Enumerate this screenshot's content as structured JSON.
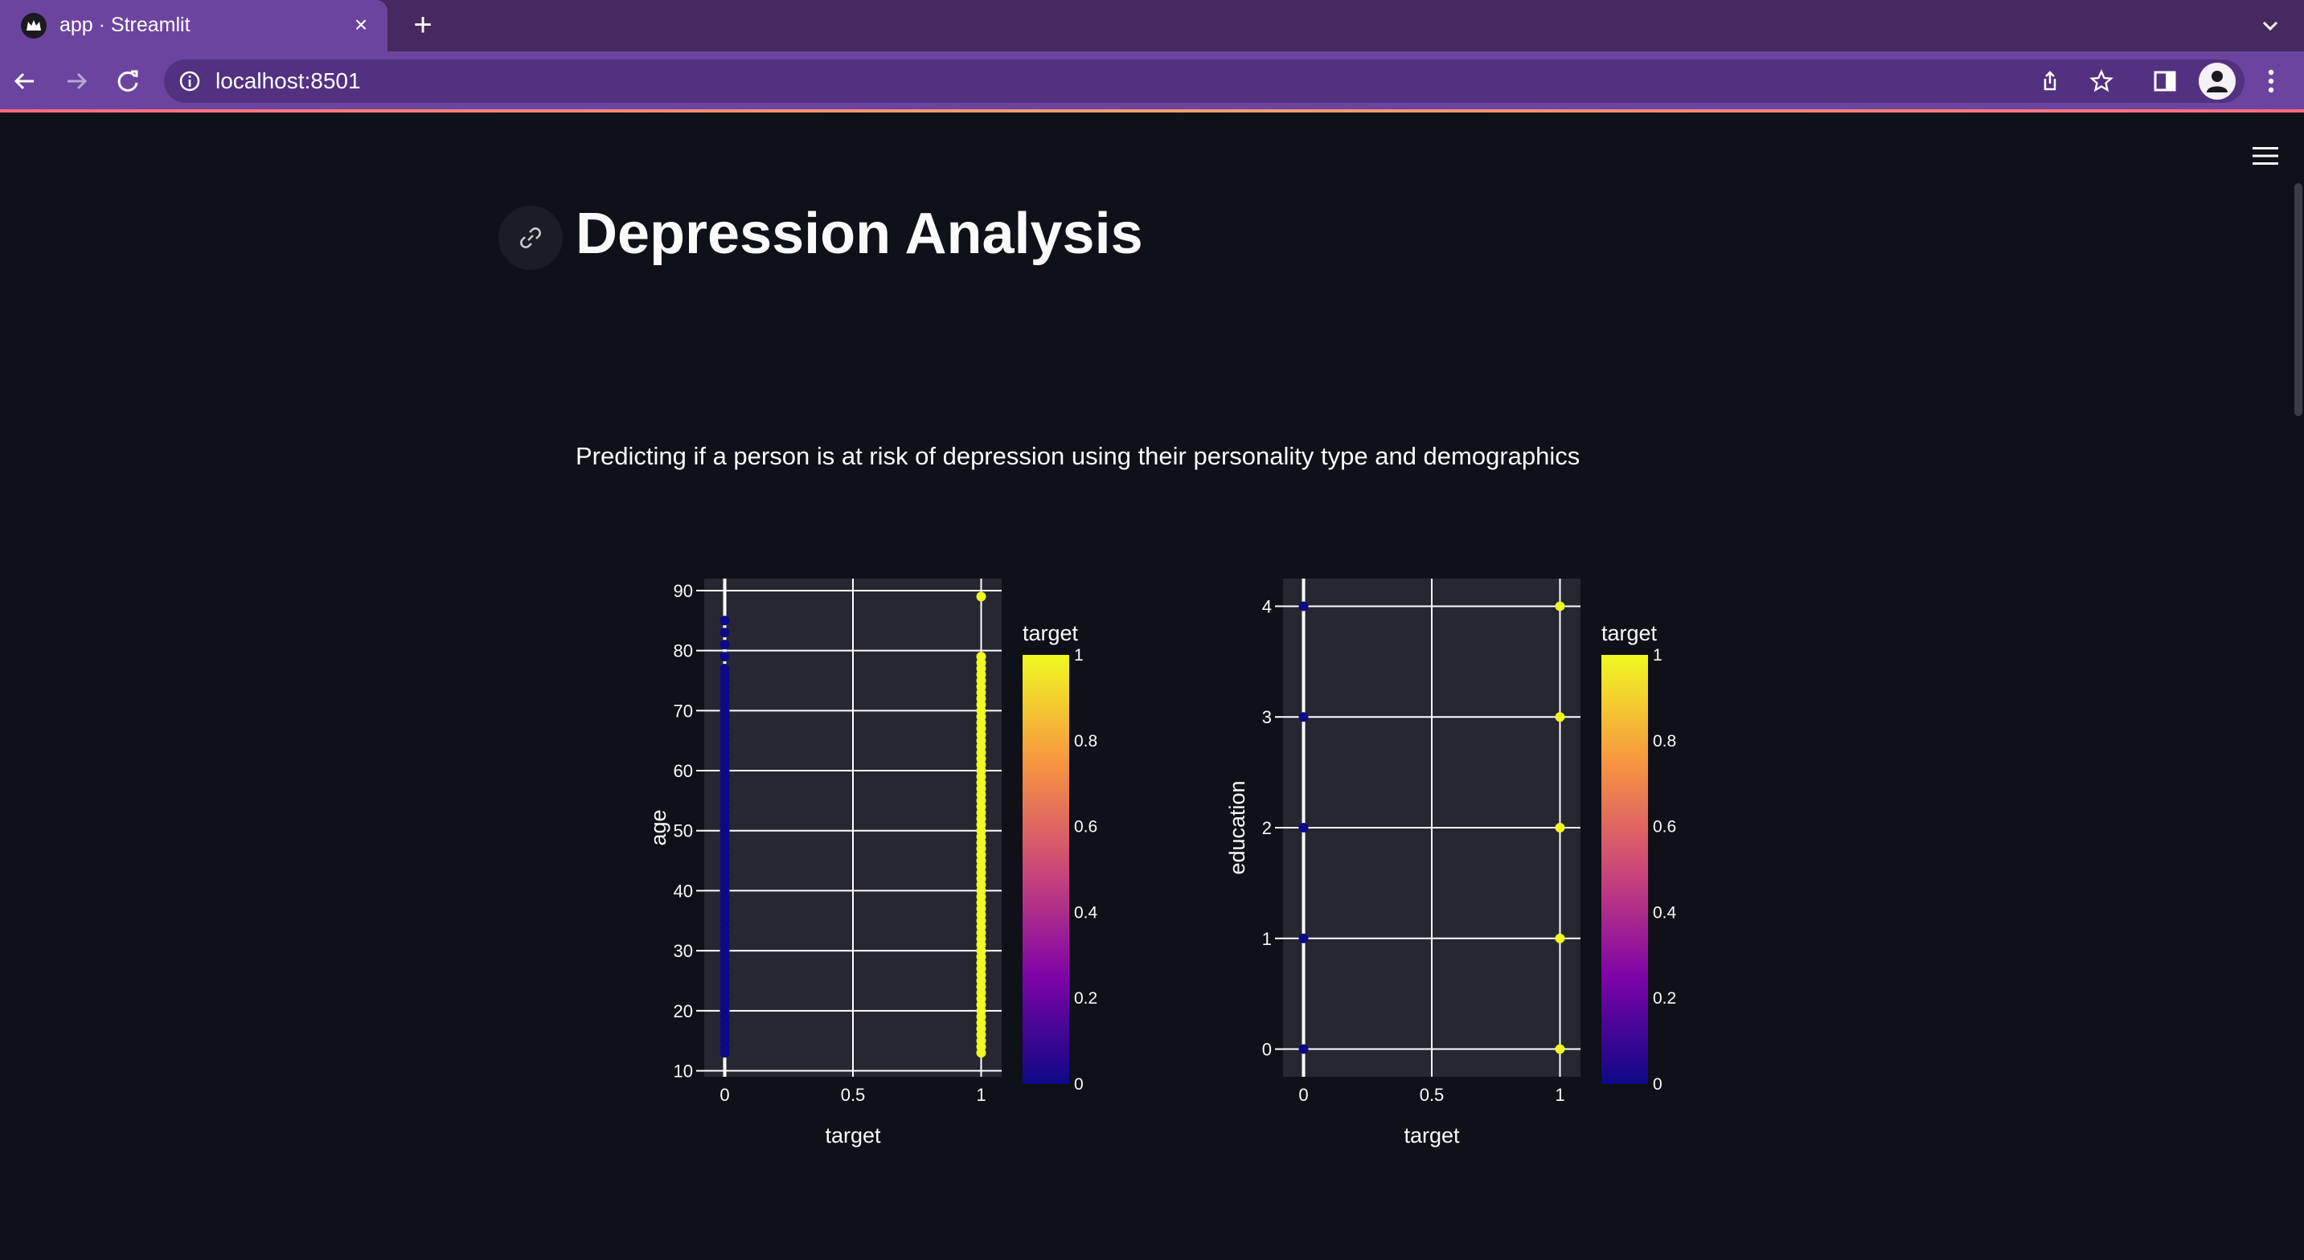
{
  "browser": {
    "tab_title": "app · Streamlit",
    "tab_close": "×",
    "new_tab": "+",
    "url": "localhost:8501"
  },
  "page": {
    "title": "Depression Analysis",
    "subtitle": "Predicting if a person is at risk of depression using their personality type and demographics"
  },
  "colors": {
    "accent": "#6c44a0",
    "background": "#0e1117",
    "plot_bg": "#262730",
    "class_0": "#0d0887",
    "class_1": "#f0f921"
  },
  "chart_data": [
    {
      "type": "scatter",
      "title": "",
      "xlabel": "target",
      "ylabel": "age",
      "xlim": [
        -0.08,
        1.08
      ],
      "ylim": [
        9,
        92
      ],
      "x_ticks": [
        0,
        0.5,
        1
      ],
      "x_tick_labels": [
        "0",
        "0.5",
        "1"
      ],
      "y_ticks": [
        10,
        20,
        30,
        40,
        50,
        60,
        70,
        80,
        90
      ],
      "y_tick_labels": [
        "10",
        "20",
        "30",
        "40",
        "50",
        "60",
        "70",
        "80",
        "90"
      ],
      "series": [
        {
          "x_value": 0,
          "y_values": [
            13,
            14,
            15,
            16,
            17,
            18,
            19,
            20,
            21,
            22,
            23,
            24,
            25,
            26,
            27,
            28,
            29,
            30,
            31,
            32,
            33,
            34,
            35,
            36,
            37,
            38,
            39,
            40,
            41,
            42,
            43,
            44,
            45,
            46,
            47,
            48,
            49,
            50,
            51,
            52,
            53,
            54,
            55,
            56,
            57,
            58,
            59,
            60,
            61,
            62,
            63,
            64,
            65,
            66,
            67,
            68,
            69,
            70,
            71,
            72,
            73,
            74,
            75,
            76,
            77,
            79,
            81,
            83,
            85
          ]
        },
        {
          "x_value": 1,
          "y_values": [
            13,
            14,
            15,
            16,
            17,
            18,
            19,
            20,
            21,
            22,
            23,
            24,
            25,
            26,
            27,
            28,
            29,
            30,
            31,
            32,
            33,
            34,
            35,
            36,
            37,
            38,
            39,
            40,
            41,
            42,
            43,
            44,
            45,
            46,
            47,
            48,
            49,
            50,
            51,
            52,
            53,
            54,
            55,
            56,
            57,
            58,
            59,
            60,
            61,
            62,
            63,
            64,
            65,
            66,
            67,
            68,
            69,
            70,
            71,
            72,
            73,
            74,
            75,
            76,
            77,
            78,
            79,
            89
          ]
        }
      ],
      "colorbar": {
        "title": "target",
        "range": [
          0,
          1
        ],
        "ticks": [
          "0",
          "0.2",
          "0.4",
          "0.6",
          "0.8",
          "1"
        ]
      },
      "grid": true,
      "legend": "right"
    },
    {
      "type": "scatter",
      "title": "",
      "xlabel": "target",
      "ylabel": "education",
      "xlim": [
        -0.08,
        1.08
      ],
      "ylim": [
        -0.25,
        4.25
      ],
      "x_ticks": [
        0,
        0.5,
        1
      ],
      "x_tick_labels": [
        "0",
        "0.5",
        "1"
      ],
      "y_ticks": [
        0,
        1,
        2,
        3,
        4
      ],
      "y_tick_labels": [
        "0",
        "1",
        "2",
        "3",
        "4"
      ],
      "series": [
        {
          "x_value": 0,
          "y_values": [
            0,
            1,
            2,
            3,
            4
          ]
        },
        {
          "x_value": 1,
          "y_values": [
            0,
            1,
            2,
            3,
            4
          ]
        }
      ],
      "colorbar": {
        "title": "target",
        "range": [
          0,
          1
        ],
        "ticks": [
          "0",
          "0.2",
          "0.4",
          "0.6",
          "0.8",
          "1"
        ]
      },
      "grid": true,
      "legend": "right"
    }
  ]
}
